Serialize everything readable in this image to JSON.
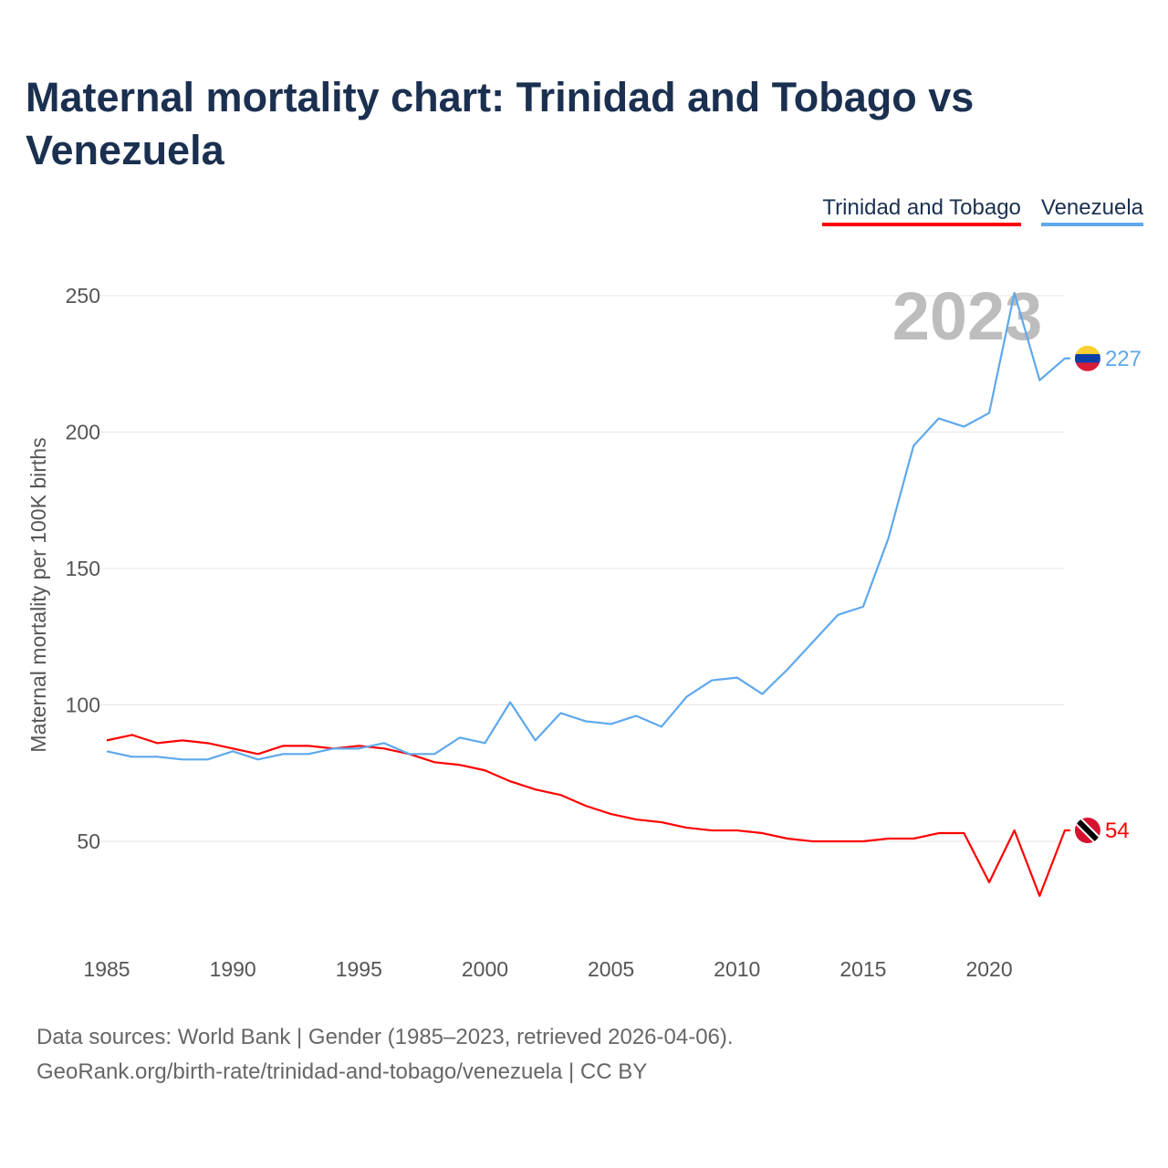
{
  "chart_data": {
    "type": "line",
    "title": "Maternal mortality chart: Trinidad and Tobago vs Venezuela",
    "ylabel": "Maternal mortality per 100K births",
    "xlabel": "",
    "xlim": [
      1985,
      2023
    ],
    "ylim": [
      20,
      260
    ],
    "x_ticks": [
      1985,
      1990,
      1995,
      2000,
      2005,
      2010,
      2015,
      2020
    ],
    "y_ticks": [
      50,
      100,
      150,
      200,
      250
    ],
    "grid": true,
    "legend_placement": "top-right",
    "year_label": "2023",
    "x": [
      1985,
      1986,
      1987,
      1988,
      1989,
      1990,
      1991,
      1992,
      1993,
      1994,
      1995,
      1996,
      1997,
      1998,
      1999,
      2000,
      2001,
      2002,
      2003,
      2004,
      2005,
      2006,
      2007,
      2008,
      2009,
      2010,
      2011,
      2012,
      2013,
      2014,
      2015,
      2016,
      2017,
      2018,
      2019,
      2020,
      2021,
      2022,
      2023
    ],
    "series": [
      {
        "name": "Trinidad and Tobago",
        "color": "#ff0000",
        "end_label": "54",
        "values": [
          87,
          89,
          86,
          87,
          86,
          84,
          82,
          85,
          85,
          84,
          85,
          84,
          82,
          79,
          78,
          76,
          72,
          69,
          67,
          63,
          60,
          58,
          57,
          55,
          54,
          54,
          53,
          51,
          50,
          50,
          50,
          51,
          51,
          53,
          53,
          35,
          54,
          30,
          54
        ]
      },
      {
        "name": "Venezuela",
        "color": "#5ea8ec",
        "end_label": "227",
        "values": [
          83,
          81,
          81,
          80,
          80,
          83,
          80,
          82,
          82,
          84,
          84,
          86,
          82,
          82,
          88,
          86,
          101,
          87,
          97,
          94,
          93,
          96,
          92,
          103,
          109,
          110,
          104,
          113,
          123,
          133,
          136,
          161,
          195,
          205,
          202,
          207,
          251,
          219,
          227
        ]
      }
    ]
  },
  "footer": {
    "line1": "Data sources: World Bank | Gender (1985–2023, retrieved 2026-04-06).",
    "line2": "GeoRank.org/birth-rate/trinidad-and-tobago/venezuela | CC BY"
  }
}
